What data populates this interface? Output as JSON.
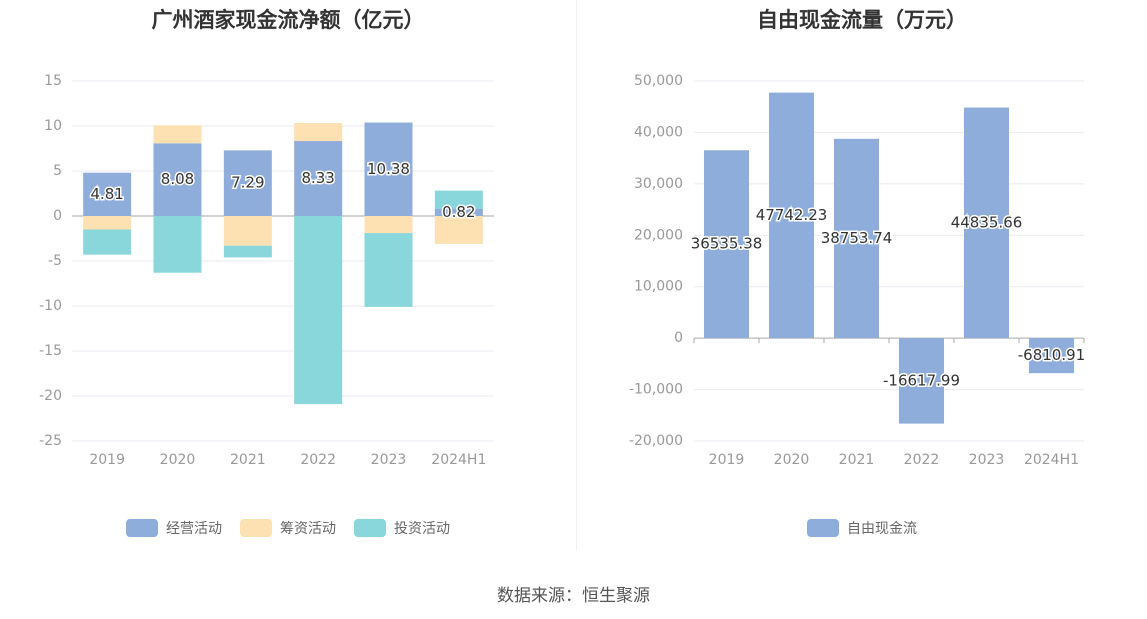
{
  "source": "数据来源：恒生聚源",
  "colors": {
    "operating": "#8eadda",
    "financing": "#fde1b2",
    "investing": "#89d7da",
    "free_cf": "#8eadda",
    "axis_text": "#999999",
    "grid": "#e8ebf0",
    "zero": "#aaaaaa"
  },
  "chart_data": [
    {
      "type": "bar",
      "stacked": true,
      "title": "广州酒家现金流净额（亿元）",
      "categories": [
        "2019",
        "2020",
        "2021",
        "2022",
        "2023",
        "2024H1"
      ],
      "ylim": [
        -25,
        15
      ],
      "yticks": [
        "15",
        "10",
        "5",
        "0",
        "-5",
        "-10",
        "-15",
        "-20",
        "-25"
      ],
      "series": [
        {
          "name": "经营活动",
          "color": "#8eadda",
          "values": [
            4.81,
            8.08,
            7.29,
            8.33,
            10.38,
            0.82
          ],
          "labels": [
            "4.81",
            "8.08",
            "7.29",
            "8.33",
            "10.38",
            "0.82"
          ]
        },
        {
          "name": "筹资活动",
          "color": "#fde1b2",
          "values": [
            -1.5,
            2.0,
            -3.3,
            2.0,
            -1.9,
            -3.1
          ]
        },
        {
          "name": "投资活动",
          "color": "#89d7da",
          "values": [
            -2.8,
            -6.3,
            -1.3,
            -20.9,
            -8.2,
            2.0
          ]
        }
      ],
      "legend": [
        "经营活动",
        "筹资活动",
        "投资活动"
      ],
      "legend_position": "bottom-center"
    },
    {
      "type": "bar",
      "title": "自由现金流量（万元）",
      "categories": [
        "2019",
        "2020",
        "2021",
        "2022",
        "2023",
        "2024H1"
      ],
      "ylim": [
        -20000,
        50000
      ],
      "yticks": [
        "50,000",
        "40,000",
        "30,000",
        "20,000",
        "10,000",
        "0",
        "-10,000",
        "-20,000"
      ],
      "series": [
        {
          "name": "自由现金流",
          "color": "#8eadda",
          "values": [
            36535.38,
            47742.23,
            38753.74,
            -16617.99,
            44835.66,
            -6810.91
          ],
          "labels": [
            "36535.38",
            "47742.23",
            "38753.74",
            "-16617.99",
            "44835.66",
            "-6810.91"
          ]
        }
      ],
      "legend": [
        "自由现金流"
      ],
      "legend_position": "bottom-center"
    }
  ]
}
